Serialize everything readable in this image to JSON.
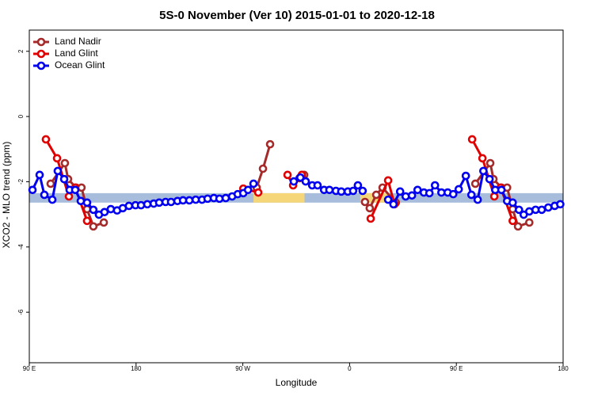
{
  "chart_data": {
    "type": "line",
    "title": "5S-0 November (Ver 10)   2015-01-01 to 2020-12-18",
    "x_label": "Longitude",
    "y_label": "XCO2 - MLO trend (ppm)",
    "xlim": [
      90,
      540
    ],
    "ylim": [
      -7.55,
      2.65
    ],
    "xticks": [
      {
        "value": 90,
        "label": "90 E"
      },
      {
        "value": 180,
        "label": "180"
      },
      {
        "value": 270,
        "label": "90 W"
      },
      {
        "value": 360,
        "label": "0"
      },
      {
        "value": 450,
        "label": "90 E"
      },
      {
        "value": 540,
        "label": "180"
      }
    ],
    "yticks": [
      -6,
      -4,
      -2,
      0,
      2
    ],
    "legend": "top-left",
    "band": {
      "y": [
        -2.64,
        -2.35
      ],
      "color": "#a7bddb"
    },
    "highlights": [
      {
        "x": [
          279,
          322
        ],
        "color": "#f5d77a"
      },
      {
        "x": [
          369,
          394
        ],
        "color": "#f5d77a"
      }
    ],
    "series": [
      {
        "name": "Land Nadir",
        "color": "#a52a2a",
        "x": [
          108,
          120,
          122.7,
          129.4,
          134,
          138.7,
          144,
          152.8,
          200,
          281.7,
          287,
          293,
          305,
          317.7,
          321.7,
          350,
          373,
          377,
          382.5,
          387.8,
          399,
          430,
          466,
          478.6,
          481.3,
          488,
          492.8,
          497.5,
          502,
          511.5
        ],
        "values": [
          -2.06,
          -1.43,
          -1.92,
          -2.18,
          -2.18,
          -2.84,
          -3.37,
          -3.25,
          null,
          -2.18,
          -1.6,
          -0.85,
          null,
          -1.89,
          -1.79,
          null,
          -2.62,
          -2.81,
          -2.4,
          -2.18,
          -2.64,
          null,
          -2.06,
          -1.43,
          -1.92,
          -2.18,
          -2.18,
          -2.84,
          -3.37,
          -3.25
        ]
      },
      {
        "name": "Land Glint",
        "color": "#e00000",
        "x": [
          104,
          113.4,
          123.4,
          128.7,
          138.7,
          200,
          270.4,
          283,
          295,
          307.7,
          312.4,
          319.7,
          350,
          377.8,
          392.5,
          397.8,
          430,
          463.3,
          472,
          482,
          487.4,
          497.5
        ],
        "values": [
          -0.7,
          -1.28,
          -2.45,
          -2.18,
          -3.2,
          null,
          -2.21,
          -2.33,
          null,
          -1.79,
          -2.11,
          -1.79,
          null,
          -3.13,
          -1.96,
          -2.69,
          null,
          -0.7,
          -1.28,
          -2.45,
          -2.18,
          -3.2
        ]
      },
      {
        "name": "Ocean Glint",
        "color": "#0000ee",
        "x": [
          92.7,
          98.7,
          102.7,
          109.4,
          114,
          119.4,
          124,
          128.7,
          133.4,
          138.7,
          144,
          148.7,
          153.4,
          158.7,
          164,
          168.8,
          174,
          179.5,
          184.2,
          189.5,
          194.9,
          199.5,
          204.9,
          209.5,
          214.9,
          219.6,
          224.9,
          230.3,
          235.6,
          240.3,
          245.6,
          250.3,
          255.6,
          261,
          265.7,
          270.4,
          274.4,
          279,
          300,
          313,
          318.5,
          323,
          328.5,
          333,
          338.5,
          343,
          348.5,
          353,
          358.5,
          363,
          367,
          371,
          380,
          392.5,
          397,
          402.6,
          407.3,
          412.6,
          417.3,
          422.6,
          427.3,
          432,
          437.4,
          442.7,
          447.4,
          452,
          458,
          462.7,
          468,
          472.8,
          478,
          482.8,
          488,
          492.8,
          497.5,
          502.8,
          506.8,
          511.5,
          516.8,
          522,
          527.5,
          532.9,
          537.6
        ],
        "values": [
          -2.25,
          -1.79,
          -2.4,
          -2.55,
          -1.67,
          -1.92,
          -2.25,
          -2.25,
          -2.59,
          -2.64,
          -2.86,
          -3.01,
          -2.93,
          -2.84,
          -2.88,
          -2.81,
          -2.74,
          -2.72,
          -2.72,
          -2.69,
          -2.67,
          -2.64,
          -2.62,
          -2.62,
          -2.59,
          -2.57,
          -2.57,
          -2.55,
          -2.55,
          -2.52,
          -2.5,
          -2.52,
          -2.5,
          -2.45,
          -2.38,
          -2.35,
          -2.25,
          -2.06,
          null,
          -1.99,
          -1.87,
          -1.99,
          -2.11,
          -2.11,
          -2.25,
          -2.25,
          -2.28,
          -2.3,
          -2.3,
          -2.28,
          -2.11,
          -2.28,
          null,
          -2.55,
          -2.69,
          -2.3,
          -2.45,
          -2.42,
          -2.25,
          -2.33,
          -2.35,
          -2.11,
          -2.33,
          -2.33,
          -2.38,
          -2.23,
          -1.82,
          -2.4,
          -2.55,
          -1.67,
          -1.92,
          -2.25,
          -2.25,
          -2.59,
          -2.64,
          -2.86,
          -3.01,
          -2.91,
          -2.86,
          -2.86,
          -2.79,
          -2.74,
          -2.69
        ]
      }
    ]
  }
}
